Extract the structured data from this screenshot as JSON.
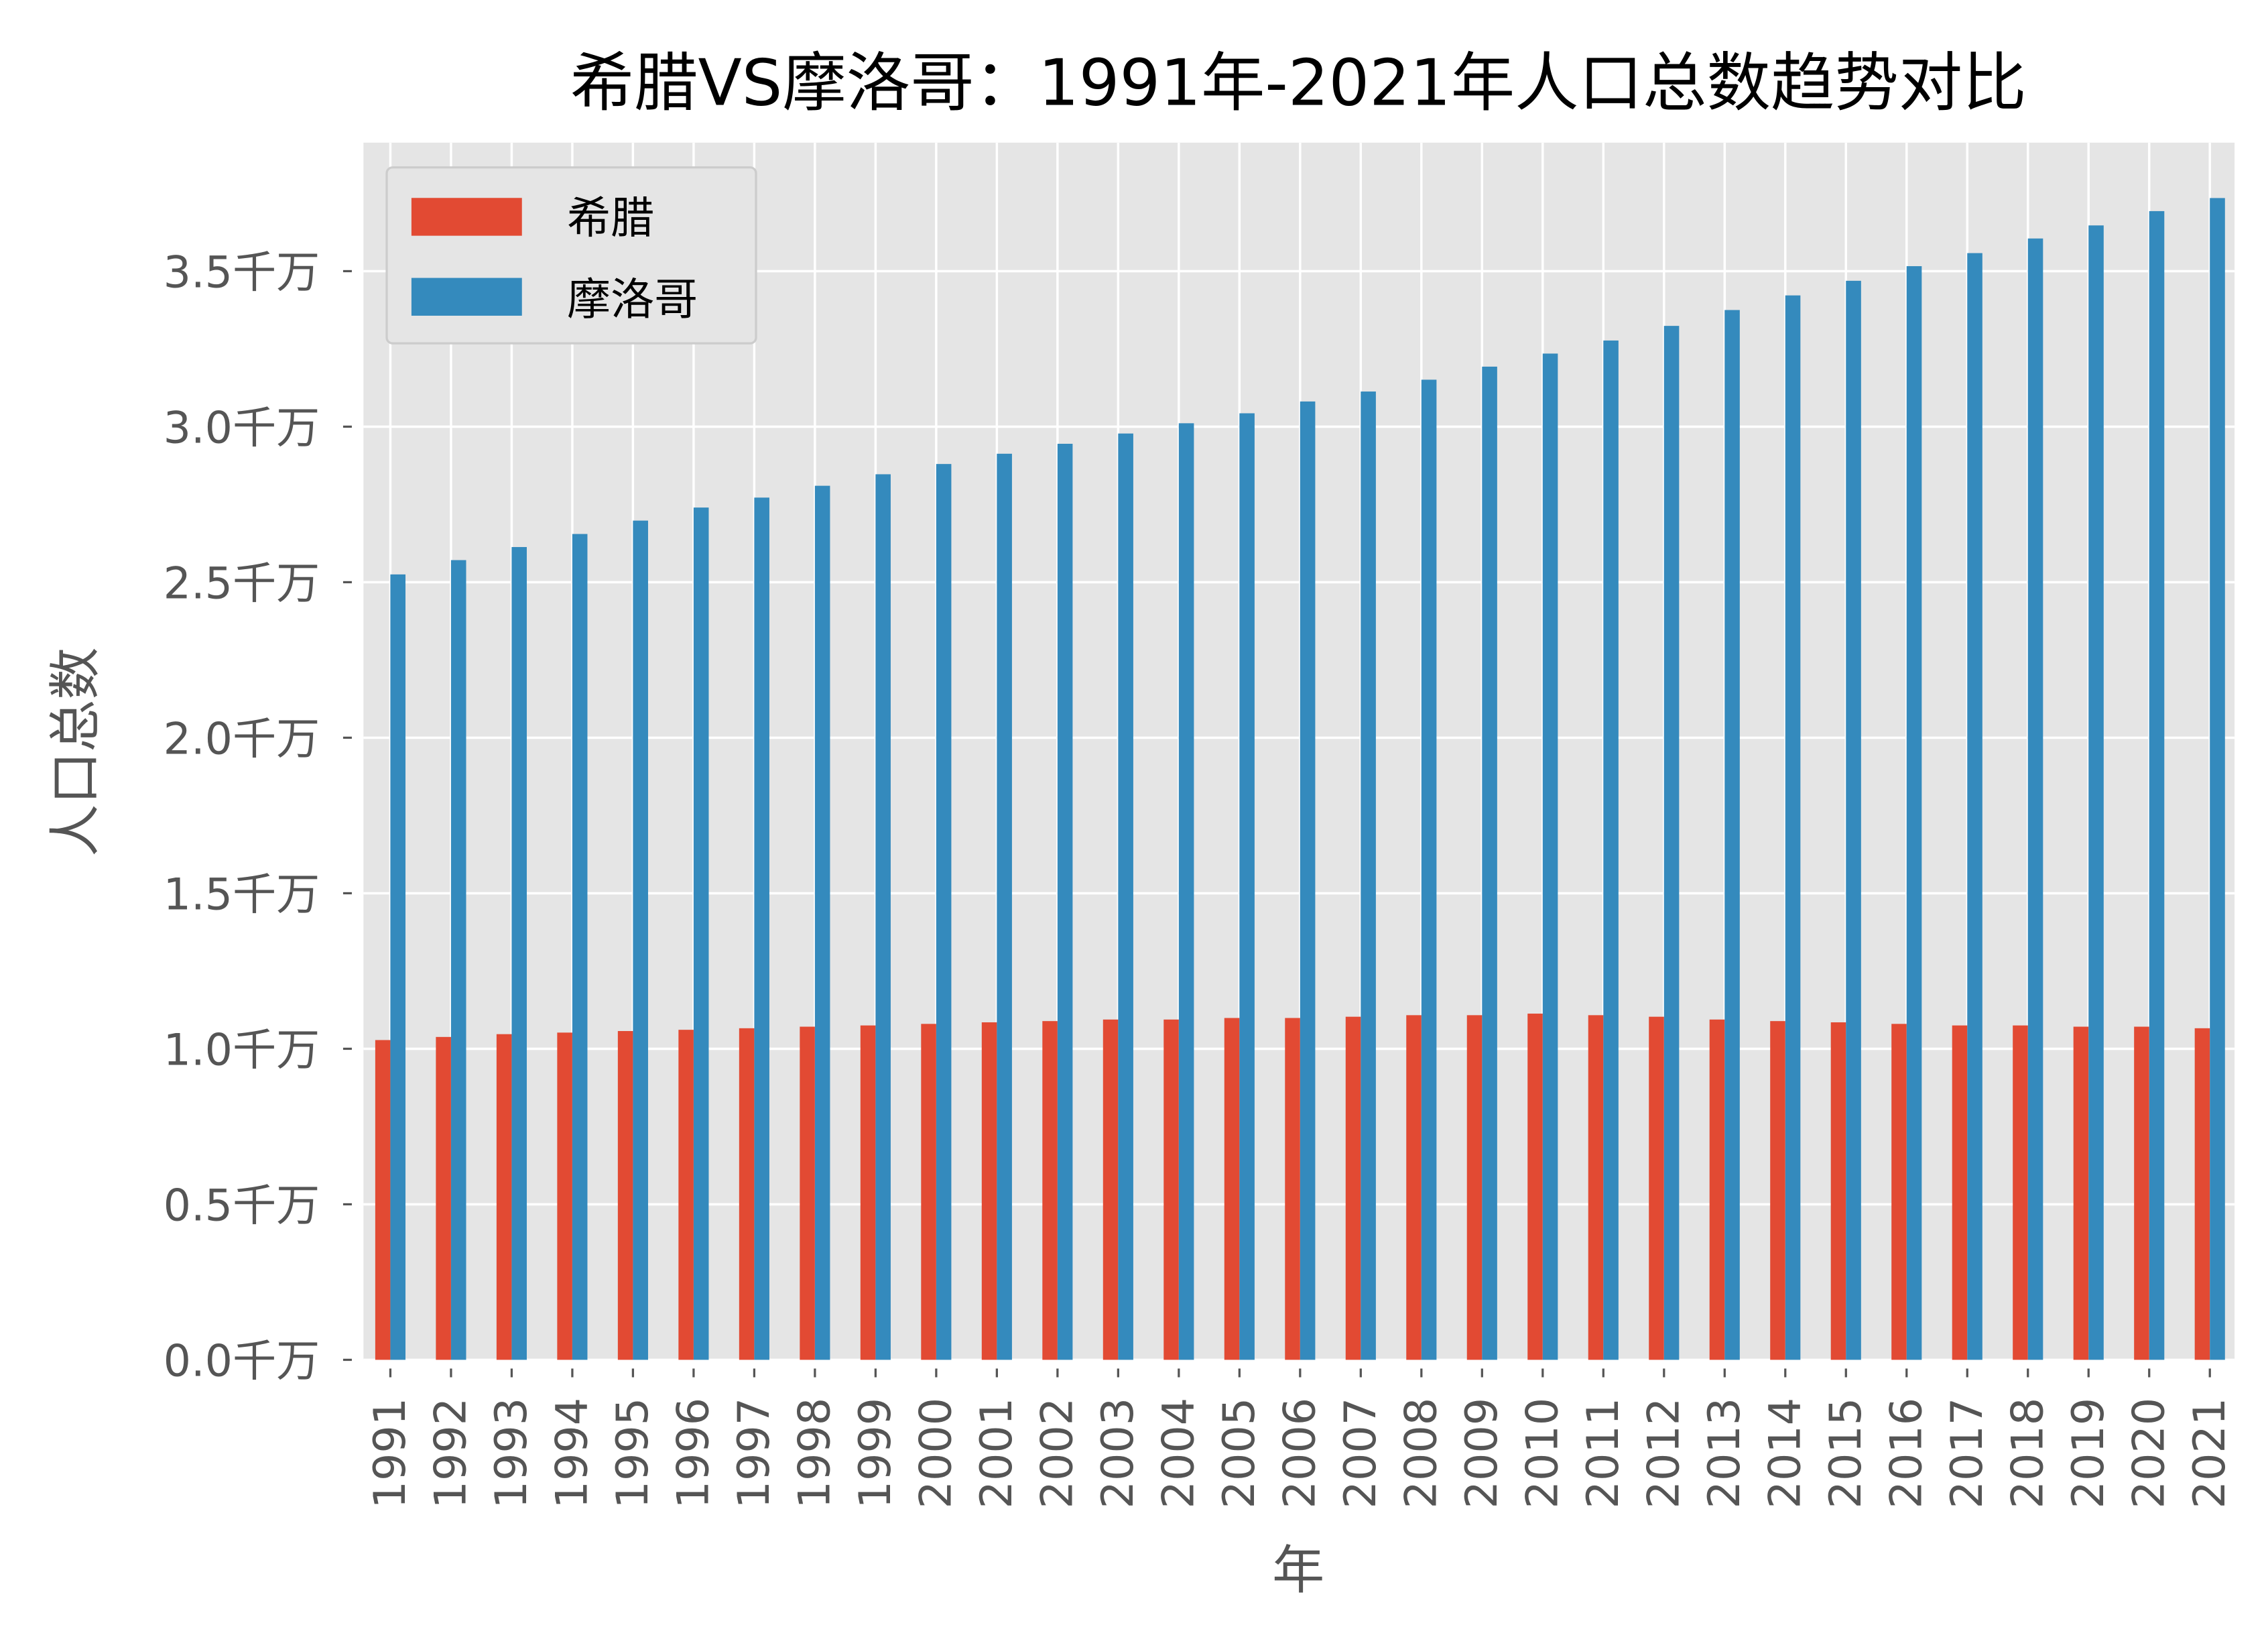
{
  "chart_data": {
    "type": "bar",
    "title": "希腊VS摩洛哥：1991年-2021年人口总数趋势对比",
    "xlabel": "年",
    "ylabel": "人口总数",
    "ylim": [
      0,
      3.9
    ],
    "ytick_values": [
      0,
      0.5,
      1.0,
      1.5,
      2.0,
      2.5,
      3.0,
      3.5
    ],
    "ytick_labels": [
      "0.0千万",
      "0.5千万",
      "1.0千万",
      "1.5千万",
      "2.0千万",
      "2.5千万",
      "3.0千万",
      "3.5千万"
    ],
    "grid": true,
    "legend_position": "top-left",
    "categories": [
      "1991",
      "1992",
      "1993",
      "1994",
      "1995",
      "1996",
      "1997",
      "1998",
      "1999",
      "2000",
      "2001",
      "2002",
      "2003",
      "2004",
      "2005",
      "2006",
      "2007",
      "2008",
      "2009",
      "2010",
      "2011",
      "2012",
      "2013",
      "2014",
      "2015",
      "2016",
      "2017",
      "2018",
      "2019",
      "2020",
      "2021"
    ],
    "series": [
      {
        "name": "希腊",
        "color": "#E24A33",
        "values": [
          1.028,
          1.038,
          1.047,
          1.052,
          1.057,
          1.061,
          1.066,
          1.071,
          1.075,
          1.08,
          1.085,
          1.089,
          1.094,
          1.094,
          1.099,
          1.099,
          1.103,
          1.108,
          1.108,
          1.113,
          1.108,
          1.103,
          1.094,
          1.089,
          1.085,
          1.08,
          1.075,
          1.075,
          1.071,
          1.071,
          1.066
        ]
      },
      {
        "name": "摩洛哥",
        "color": "#348ABD",
        "values": [
          2.525,
          2.571,
          2.613,
          2.655,
          2.698,
          2.74,
          2.772,
          2.81,
          2.847,
          2.88,
          2.913,
          2.945,
          2.978,
          3.011,
          3.043,
          3.081,
          3.113,
          3.151,
          3.193,
          3.235,
          3.277,
          3.324,
          3.375,
          3.422,
          3.469,
          3.516,
          3.558,
          3.605,
          3.647,
          3.693,
          3.735
        ]
      }
    ]
  }
}
